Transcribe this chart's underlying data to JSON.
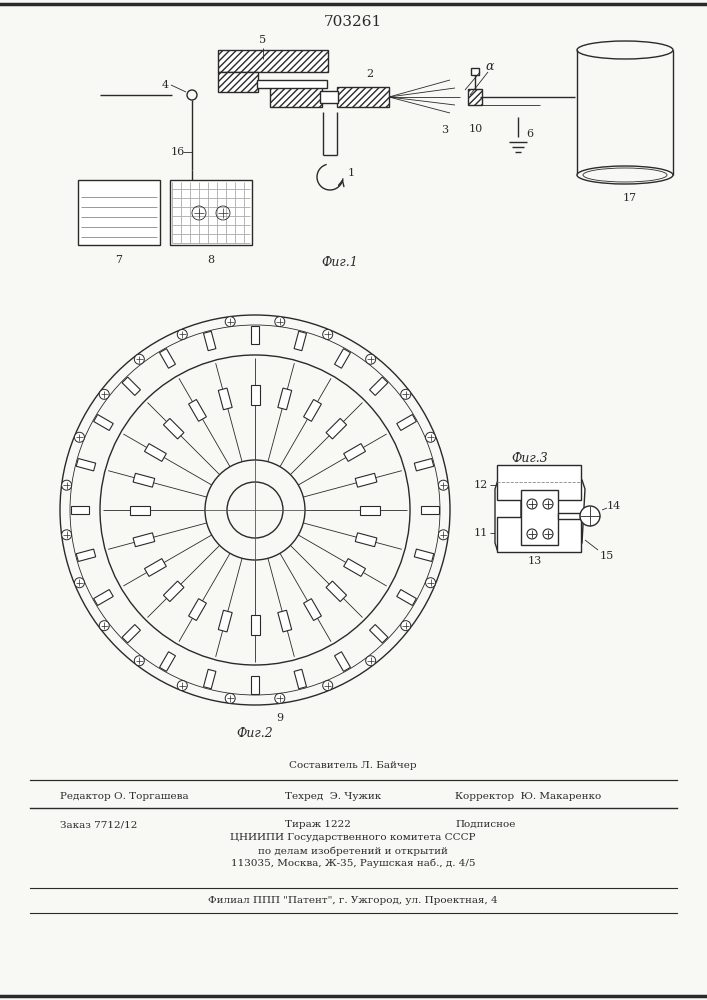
{
  "patent_number": "703261",
  "background_color": "#f8f8f5",
  "line_color": "#2a2a2a",
  "fig1_label": "Фиг.1",
  "fig2_label": "Фиг.2",
  "fig3_label": "Фиг.3",
  "footer_sestavitel": "Составитель Л. Байчер",
  "footer_redaktor": "Редактор О. Торгашева",
  "footer_tehred": "Техред  Э. Чужик",
  "footer_korrektor": "Корректор  Ю. Макаренко",
  "footer_zakaz": "Заказ 7712/12",
  "footer_tirazh": "Тираж 1222",
  "footer_podpisnoe": "Подписное",
  "footer_cniip1": "ЦНИИПИ Государственного комитета СССР",
  "footer_cniip2": "по делам изобретений и открытий",
  "footer_addr": "113035, Москва, Ж-35, Раушская наб., д. 4/5",
  "footer_filial": "Филиал ППП \"Патент\", г. Ужгород, ул. Проектная, 4"
}
